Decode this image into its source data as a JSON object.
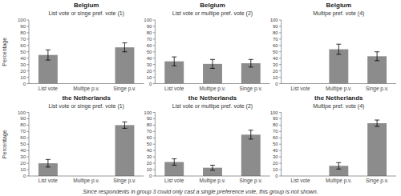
{
  "chart_data": [
    {
      "type": "bar",
      "title": "Belgium",
      "subtitle": "List vote or singe pref. vote (1)",
      "ylabel": "Percentage",
      "categories": [
        "List vote",
        "Multipe p.v.",
        "Singe p.v."
      ],
      "values": [
        45,
        null,
        57
      ],
      "errors": [
        8,
        null,
        7
      ],
      "color": "#8c8c8c",
      "ylim": [
        0,
        100
      ],
      "yticks": [
        0,
        10,
        20,
        30,
        40,
        50,
        60,
        70,
        80,
        90,
        100
      ],
      "grid": false
    },
    {
      "type": "bar",
      "title": "Belgium",
      "subtitle": "List vote or multipe pref. vote (2)",
      "categories": [
        "List vote",
        "Multipe p.v.",
        "Singe p.v."
      ],
      "values": [
        35,
        31,
        32
      ],
      "errors": [
        7,
        7,
        6
      ],
      "color": "#8c8c8c",
      "ylim": [
        0,
        100
      ],
      "yticks": [
        0,
        10,
        20,
        30,
        40,
        50,
        60,
        70,
        80,
        90,
        100
      ],
      "grid": false
    },
    {
      "type": "bar",
      "title": "Belgium",
      "subtitle": "Multipe pref. vote (4)",
      "categories": [
        "List vote",
        "Multipe p.v.",
        "Singe p.v."
      ],
      "values": [
        null,
        54,
        43
      ],
      "errors": [
        null,
        8,
        7
      ],
      "color": "#8c8c8c",
      "ylim": [
        0,
        100
      ],
      "yticks": [
        0,
        10,
        20,
        30,
        40,
        50,
        60,
        70,
        80,
        90,
        100
      ],
      "grid": false
    },
    {
      "type": "bar",
      "title": "the Netherlands",
      "subtitle": "List vote or singe pref. vote (1)",
      "ylabel": "Percentage",
      "categories": [
        "List vote",
        "Multipe p.v.",
        "Singe p.v."
      ],
      "values": [
        20,
        null,
        80
      ],
      "errors": [
        6,
        null,
        5
      ],
      "color": "#8c8c8c",
      "ylim": [
        0,
        100
      ],
      "yticks": [
        0,
        10,
        20,
        30,
        40,
        50,
        60,
        70,
        80,
        90,
        100
      ],
      "grid": false
    },
    {
      "type": "bar",
      "title": "the Netherlands",
      "subtitle": "List vote or multipe pref. vote (2)",
      "categories": [
        "List vote",
        "Multipe p.v.",
        "Singe p.v."
      ],
      "values": [
        22,
        13,
        65
      ],
      "errors": [
        5,
        4,
        7
      ],
      "color": "#8c8c8c",
      "ylim": [
        0,
        100
      ],
      "yticks": [
        0,
        10,
        20,
        30,
        40,
        50,
        60,
        70,
        80,
        90,
        100
      ],
      "grid": false
    },
    {
      "type": "bar",
      "title": "the Netherlands",
      "subtitle": "Multipe pref. vote (4)",
      "categories": [
        "List vote",
        "Multipe p.v.",
        "Singe p.v."
      ],
      "values": [
        null,
        16,
        83
      ],
      "errors": [
        null,
        5,
        5
      ],
      "color": "#8c8c8c",
      "ylim": [
        0,
        100
      ],
      "yticks": [
        0,
        10,
        20,
        30,
        40,
        50,
        60,
        70,
        80,
        90,
        100
      ],
      "grid": false
    }
  ],
  "footnote": "Since respondents in group 3 could only cast a single preference vote, this group is not shown."
}
